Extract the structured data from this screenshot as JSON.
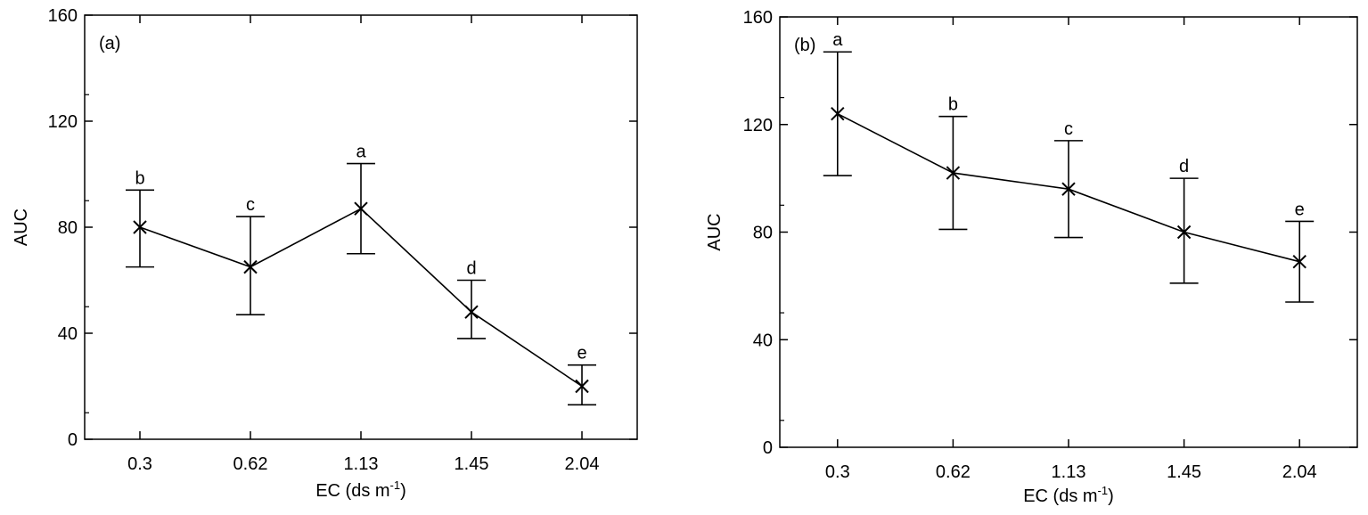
{
  "chart_data": [
    {
      "type": "line",
      "panel_label": "(a)",
      "xlabel": "EC (ds m",
      "xlabel_sup": "-1",
      "xlabel_close": ")",
      "ylabel": "AUC",
      "categories": [
        "0.3",
        "0.62",
        "1.13",
        "1.45",
        "2.04"
      ],
      "values": [
        80,
        65,
        87,
        48,
        20
      ],
      "error_low": [
        65,
        47,
        70,
        38,
        13
      ],
      "error_high": [
        94,
        84,
        104,
        60,
        28
      ],
      "letters": [
        "b",
        "c",
        "a",
        "d",
        "e"
      ],
      "ylim": [
        0,
        160
      ],
      "yticks": [
        "0",
        "40",
        "80",
        "120",
        "160"
      ],
      "grid": false,
      "marker": "x"
    },
    {
      "type": "line",
      "panel_label": "(b)",
      "xlabel": "EC (ds m",
      "xlabel_sup": "-1",
      "xlabel_close": ")",
      "ylabel": "AUC",
      "categories": [
        "0.3",
        "0.62",
        "1.13",
        "1.45",
        "2.04"
      ],
      "values": [
        124,
        102,
        96,
        80,
        69
      ],
      "error_low": [
        101,
        81,
        78,
        61,
        54
      ],
      "error_high": [
        147,
        123,
        114,
        100,
        84
      ],
      "letters": [
        "a",
        "b",
        "c",
        "d",
        "e"
      ],
      "ylim": [
        0,
        160
      ],
      "yticks": [
        "0",
        "40",
        "80",
        "120",
        "160"
      ],
      "grid": false,
      "marker": "x"
    }
  ]
}
